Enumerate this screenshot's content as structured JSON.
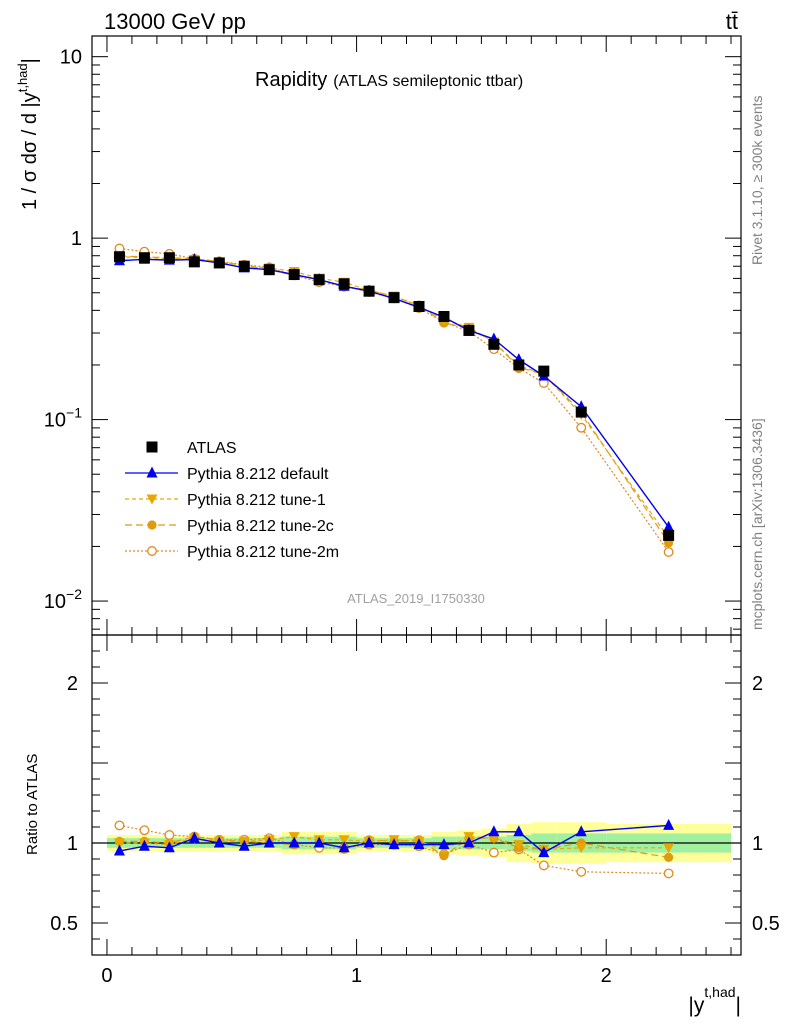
{
  "header": {
    "energy_label": "13000 GeV pp",
    "process_label": "tt̄"
  },
  "main_plot": {
    "title": "Rapidity",
    "subtitle": "(ATLAS semileptonic ttbar)",
    "ylabel": "1 / σ dσ / d |y",
    "ylabel_sup": "t,had",
    "ylabel_end": "|",
    "watermark": "ATLAS_2019_I1750330",
    "y_ticks": [
      {
        "base": "10",
        "exp": "",
        "value": 10
      },
      {
        "base": "1",
        "exp": "",
        "value": 1
      },
      {
        "base": "10",
        "exp": "−1",
        "value": 0.1
      },
      {
        "base": "10",
        "exp": "−2",
        "value": 0.01
      }
    ]
  },
  "ratio_plot": {
    "ylabel": "Ratio to ATLAS",
    "y_ticks": [
      {
        "label": "2",
        "value": 2
      },
      {
        "label": "1",
        "value": 1
      },
      {
        "label": "0.5",
        "value": 0.5
      }
    ]
  },
  "x_axis": {
    "label": "|y",
    "label_sup": "t,had",
    "label_end": "|",
    "ticks": [
      {
        "label": "0",
        "value": 0
      },
      {
        "label": "1",
        "value": 1
      },
      {
        "label": "2",
        "value": 2
      }
    ]
  },
  "side_labels": {
    "rivet": "Rivet 3.1.10, ≥ 300k events",
    "mcplots": "mcplots.cern.ch [arXiv:1306.3436]"
  },
  "legend": {
    "items": [
      {
        "label": "ATLAS"
      },
      {
        "label": "Pythia 8.212 default"
      },
      {
        "label": "Pythia 8.212 tune-1"
      },
      {
        "label": "Pythia 8.212 tune-2c"
      },
      {
        "label": "Pythia 8.212 tune-2m"
      }
    ]
  },
  "colors": {
    "data": "#000000",
    "default": "#0000ee",
    "tune1": "#e8a800",
    "tune2c": "#e09a10",
    "tune2m": "#e08a20",
    "band_inner": "#a0f0a0",
    "band_outer": "#ffff99"
  },
  "chart_data": {
    "type": "line",
    "log_y": true,
    "xlim": [
      -0.06,
      2.54
    ],
    "ylim": [
      0.0065,
      13
    ],
    "ratio_ylim": [
      0.3,
      2.3
    ],
    "x_bins": [
      0,
      0.1,
      0.2,
      0.3,
      0.4,
      0.5,
      0.6,
      0.7,
      0.8,
      0.9,
      1.0,
      1.1,
      1.2,
      1.3,
      1.4,
      1.5,
      1.6,
      1.7,
      1.8,
      2.0,
      2.5
    ],
    "x": [
      0.05,
      0.15,
      0.25,
      0.35,
      0.45,
      0.55,
      0.65,
      0.75,
      0.85,
      0.95,
      1.05,
      1.15,
      1.25,
      1.35,
      1.45,
      1.55,
      1.65,
      1.75,
      1.9,
      2.25
    ],
    "data": {
      "name": "ATLAS",
      "values": [
        0.79,
        0.78,
        0.78,
        0.74,
        0.73,
        0.7,
        0.67,
        0.63,
        0.59,
        0.56,
        0.51,
        0.47,
        0.42,
        0.37,
        0.31,
        0.26,
        0.2,
        0.185,
        0.11,
        0.023
      ],
      "band_inner": [
        0.03,
        0.03,
        0.03,
        0.03,
        0.03,
        0.03,
        0.03,
        0.04,
        0.04,
        0.04,
        0.03,
        0.03,
        0.03,
        0.04,
        0.04,
        0.04,
        0.05,
        0.06,
        0.06,
        0.06
      ],
      "band_outer": [
        0.05,
        0.05,
        0.05,
        0.05,
        0.05,
        0.05,
        0.05,
        0.07,
        0.07,
        0.07,
        0.05,
        0.05,
        0.05,
        0.07,
        0.08,
        0.09,
        0.12,
        0.13,
        0.13,
        0.12
      ]
    },
    "series": [
      {
        "name": "Pythia 8.212 default",
        "key": "default",
        "marker": "triangle-up",
        "dash": "",
        "ratio": [
          0.95,
          0.98,
          0.97,
          1.03,
          1.0,
          0.98,
          1.0,
          1.0,
          1.0,
          0.97,
          1.0,
          0.99,
          0.99,
          0.99,
          1.0,
          1.07,
          1.07,
          0.94,
          1.07,
          1.11
        ]
      },
      {
        "name": "Pythia 8.212 tune-1",
        "key": "tune1",
        "marker": "triangle-down",
        "dash": "4,3",
        "ratio": [
          1.0,
          1.0,
          0.99,
          1.03,
          1.01,
          1.01,
          1.02,
          1.04,
          1.02,
          1.02,
          1.01,
          1.02,
          1.01,
          0.96,
          1.04,
          1.03,
          0.99,
          0.96,
          0.97,
          0.97
        ]
      },
      {
        "name": "Pythia 8.212 tune-2c",
        "key": "tune2c",
        "marker": "circle",
        "dash": "7,4",
        "ratio": [
          1.01,
          1.01,
          1.0,
          1.04,
          1.02,
          1.01,
          1.0,
          0.99,
          1.01,
          0.96,
          1.02,
          1.01,
          1.02,
          0.92,
          1.03,
          1.03,
          0.97,
          0.96,
          1.0,
          0.91
        ]
      },
      {
        "name": "Pythia 8.212 tune-2m",
        "key": "tune2m",
        "marker": "circle-open",
        "dash": "2,2",
        "ratio": [
          1.11,
          1.08,
          1.05,
          1.04,
          1.02,
          1.02,
          1.03,
          0.99,
          0.97,
          0.97,
          0.99,
          0.99,
          0.98,
          0.93,
          0.99,
          0.94,
          0.96,
          0.86,
          0.82,
          0.81
        ]
      }
    ]
  }
}
